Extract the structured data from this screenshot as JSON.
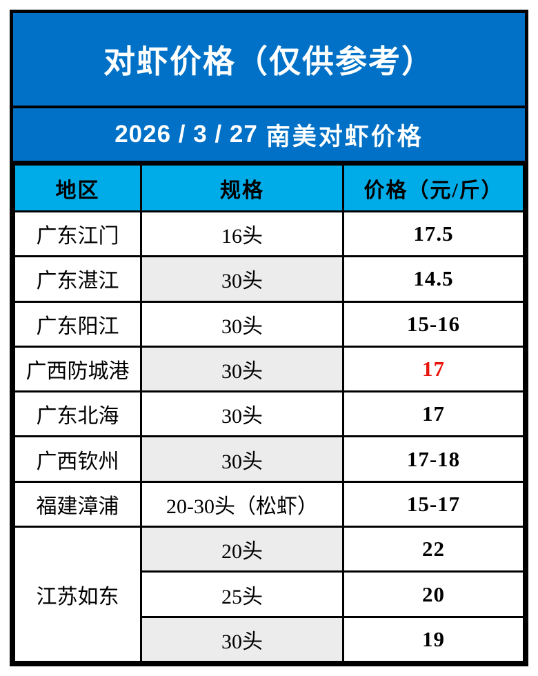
{
  "title": "对虾价格（仅供参考）",
  "subtitle": {
    "date": "2026 / 3 / 27",
    "label": "南美对虾价格"
  },
  "table": {
    "headers": [
      "地区",
      "规格",
      "价格（元/斤）"
    ],
    "rows": [
      {
        "region": "广东江门",
        "spec": "16头",
        "price": "17.5"
      },
      {
        "region": "广东湛江",
        "spec": "30头",
        "price": "14.5"
      },
      {
        "region": "广东阳江",
        "spec": "30头",
        "price": "15-16"
      },
      {
        "region": "广西防城港",
        "spec": "30头",
        "price": "17"
      },
      {
        "region": "广东北海",
        "spec": "30头",
        "price": "17"
      },
      {
        "region": "广西钦州",
        "spec": "30头",
        "price": "17-18"
      },
      {
        "region": "福建漳浦",
        "spec": "20-30头（松虾）",
        "price": "15-17"
      },
      {
        "region": "江苏如东",
        "spec": "20头",
        "price": "22"
      },
      {
        "spec": "25头",
        "price": "20"
      },
      {
        "spec": "30头",
        "price": "19"
      }
    ]
  },
  "colors": {
    "title_bg": "#0071C6",
    "header_bg": "#00ACE8",
    "alt_cell_bg": "#ECECEC",
    "highlight_price": "#E8140B",
    "border": "#000000"
  },
  "chart_data": {
    "type": "table",
    "title": "对虾价格（仅供参考）",
    "subtitle": "2026 / 3 / 27 南美对虾价格",
    "columns": [
      "地区",
      "规格",
      "价格（元/斤）"
    ],
    "rows": [
      [
        "广东江门",
        "16头",
        "17.5"
      ],
      [
        "广东湛江",
        "30头",
        "14.5"
      ],
      [
        "广东阳江",
        "30头",
        "15-16"
      ],
      [
        "广西防城港",
        "30头",
        "17"
      ],
      [
        "广东北海",
        "30头",
        "17"
      ],
      [
        "广西钦州",
        "30头",
        "17-18"
      ],
      [
        "福建漳浦",
        "20-30头（松虾）",
        "15-17"
      ],
      [
        "江苏如东",
        "20头",
        "22"
      ],
      [
        "江苏如东",
        "25头",
        "20"
      ],
      [
        "江苏如东",
        "30头",
        "19"
      ]
    ],
    "notes": "江苏如东 is a merged cell spanning the last 3 rows; the price 17 for 广西防城港 is highlighted in red"
  }
}
